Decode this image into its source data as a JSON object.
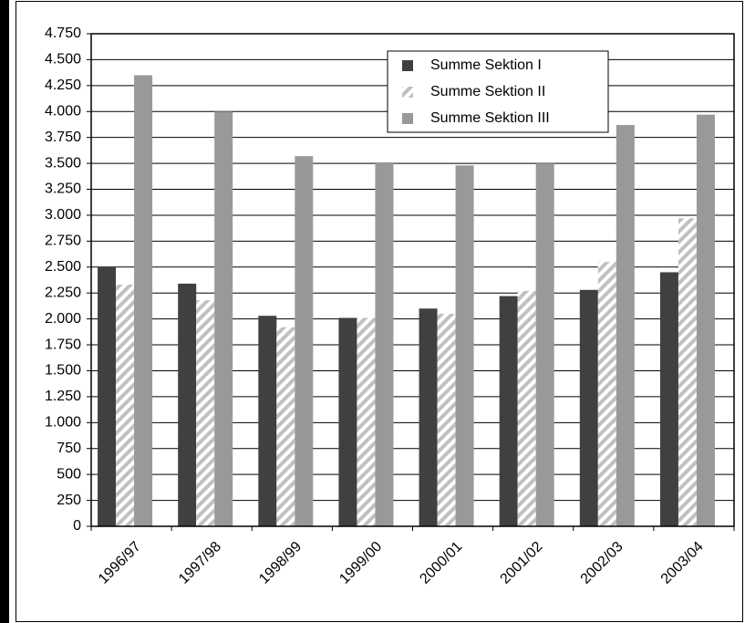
{
  "chart_data": {
    "type": "bar",
    "categories": [
      "1996/97",
      "1997/98",
      "1998/99",
      "1999/00",
      "2000/01",
      "2001/02",
      "2002/03",
      "2003/04"
    ],
    "series": [
      {
        "name": "Summe Sektion I",
        "color": "#404040",
        "values": [
          2500,
          2340,
          2030,
          2010,
          2100,
          2220,
          2280,
          2450
        ]
      },
      {
        "name": "Summe Sektion II",
        "color": "#c0c0c0",
        "pattern": "hatch",
        "values": [
          2330,
          2180,
          1920,
          2010,
          2050,
          2270,
          2550,
          2970
        ]
      },
      {
        "name": "Summe Sektion III",
        "color": "#999999",
        "values": [
          4350,
          4000,
          3570,
          3510,
          3480,
          3500,
          3870,
          3970
        ]
      }
    ],
    "ylim": [
      0,
      4750
    ],
    "yticks": [
      0,
      250,
      500,
      750,
      {
        "value": 1000,
        "label": "1.000"
      },
      {
        "value": 1250,
        "label": "1.250"
      },
      {
        "value": 1500,
        "label": "1.500"
      },
      {
        "value": 1750,
        "label": "1.750"
      },
      {
        "value": 2000,
        "label": "2.000"
      },
      {
        "value": 2250,
        "label": "2.250"
      },
      {
        "value": 2500,
        "label": "2.500"
      },
      {
        "value": 2750,
        "label": "2.750"
      },
      {
        "value": 3000,
        "label": "3.000"
      },
      {
        "value": 3250,
        "label": "3.250"
      },
      {
        "value": 3500,
        "label": "3.500"
      },
      {
        "value": 3750,
        "label": "3.750"
      },
      {
        "value": 4000,
        "label": "4.000"
      },
      {
        "value": 4250,
        "label": "4.250"
      },
      {
        "value": 4500,
        "label": "4.500"
      },
      {
        "value": 4750,
        "label": "4.750"
      }
    ],
    "grid": true,
    "legend": "upper right"
  }
}
